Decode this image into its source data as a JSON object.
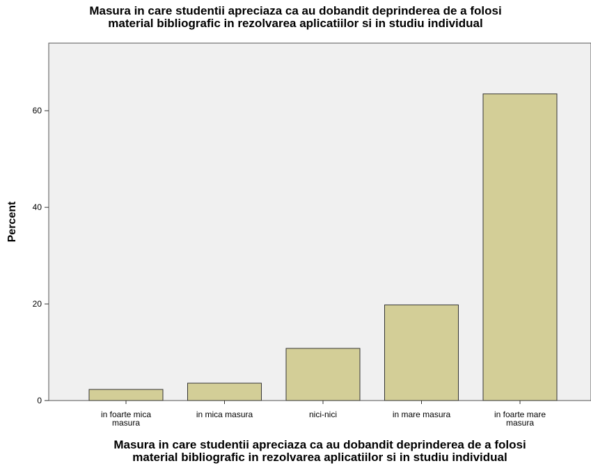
{
  "chart_data": {
    "type": "bar",
    "title": "Masura in care studentii apreciaza ca au dobandit deprinderea de a folosi\nmaterial bibliografic in rezolvarea aplicatiilor si in studiu individual",
    "x_label": "Masura in care studentii apreciaza ca au dobandit deprinderea de a folosi\nmaterial bibliografic in rezolvarea aplicatiilor si in studiu individual",
    "y_label": "Percent",
    "categories": [
      "in foarte mica\nmasura",
      "in mica masura",
      "nici-nici",
      "in mare masura",
      "in foarte mare\nmasura"
    ],
    "values": [
      2.3,
      3.6,
      10.8,
      19.8,
      63.5
    ],
    "color": "#d3ce97",
    "ylim": [
      0,
      74
    ],
    "yticks": [
      0,
      20,
      40,
      60
    ],
    "grid": false
  }
}
